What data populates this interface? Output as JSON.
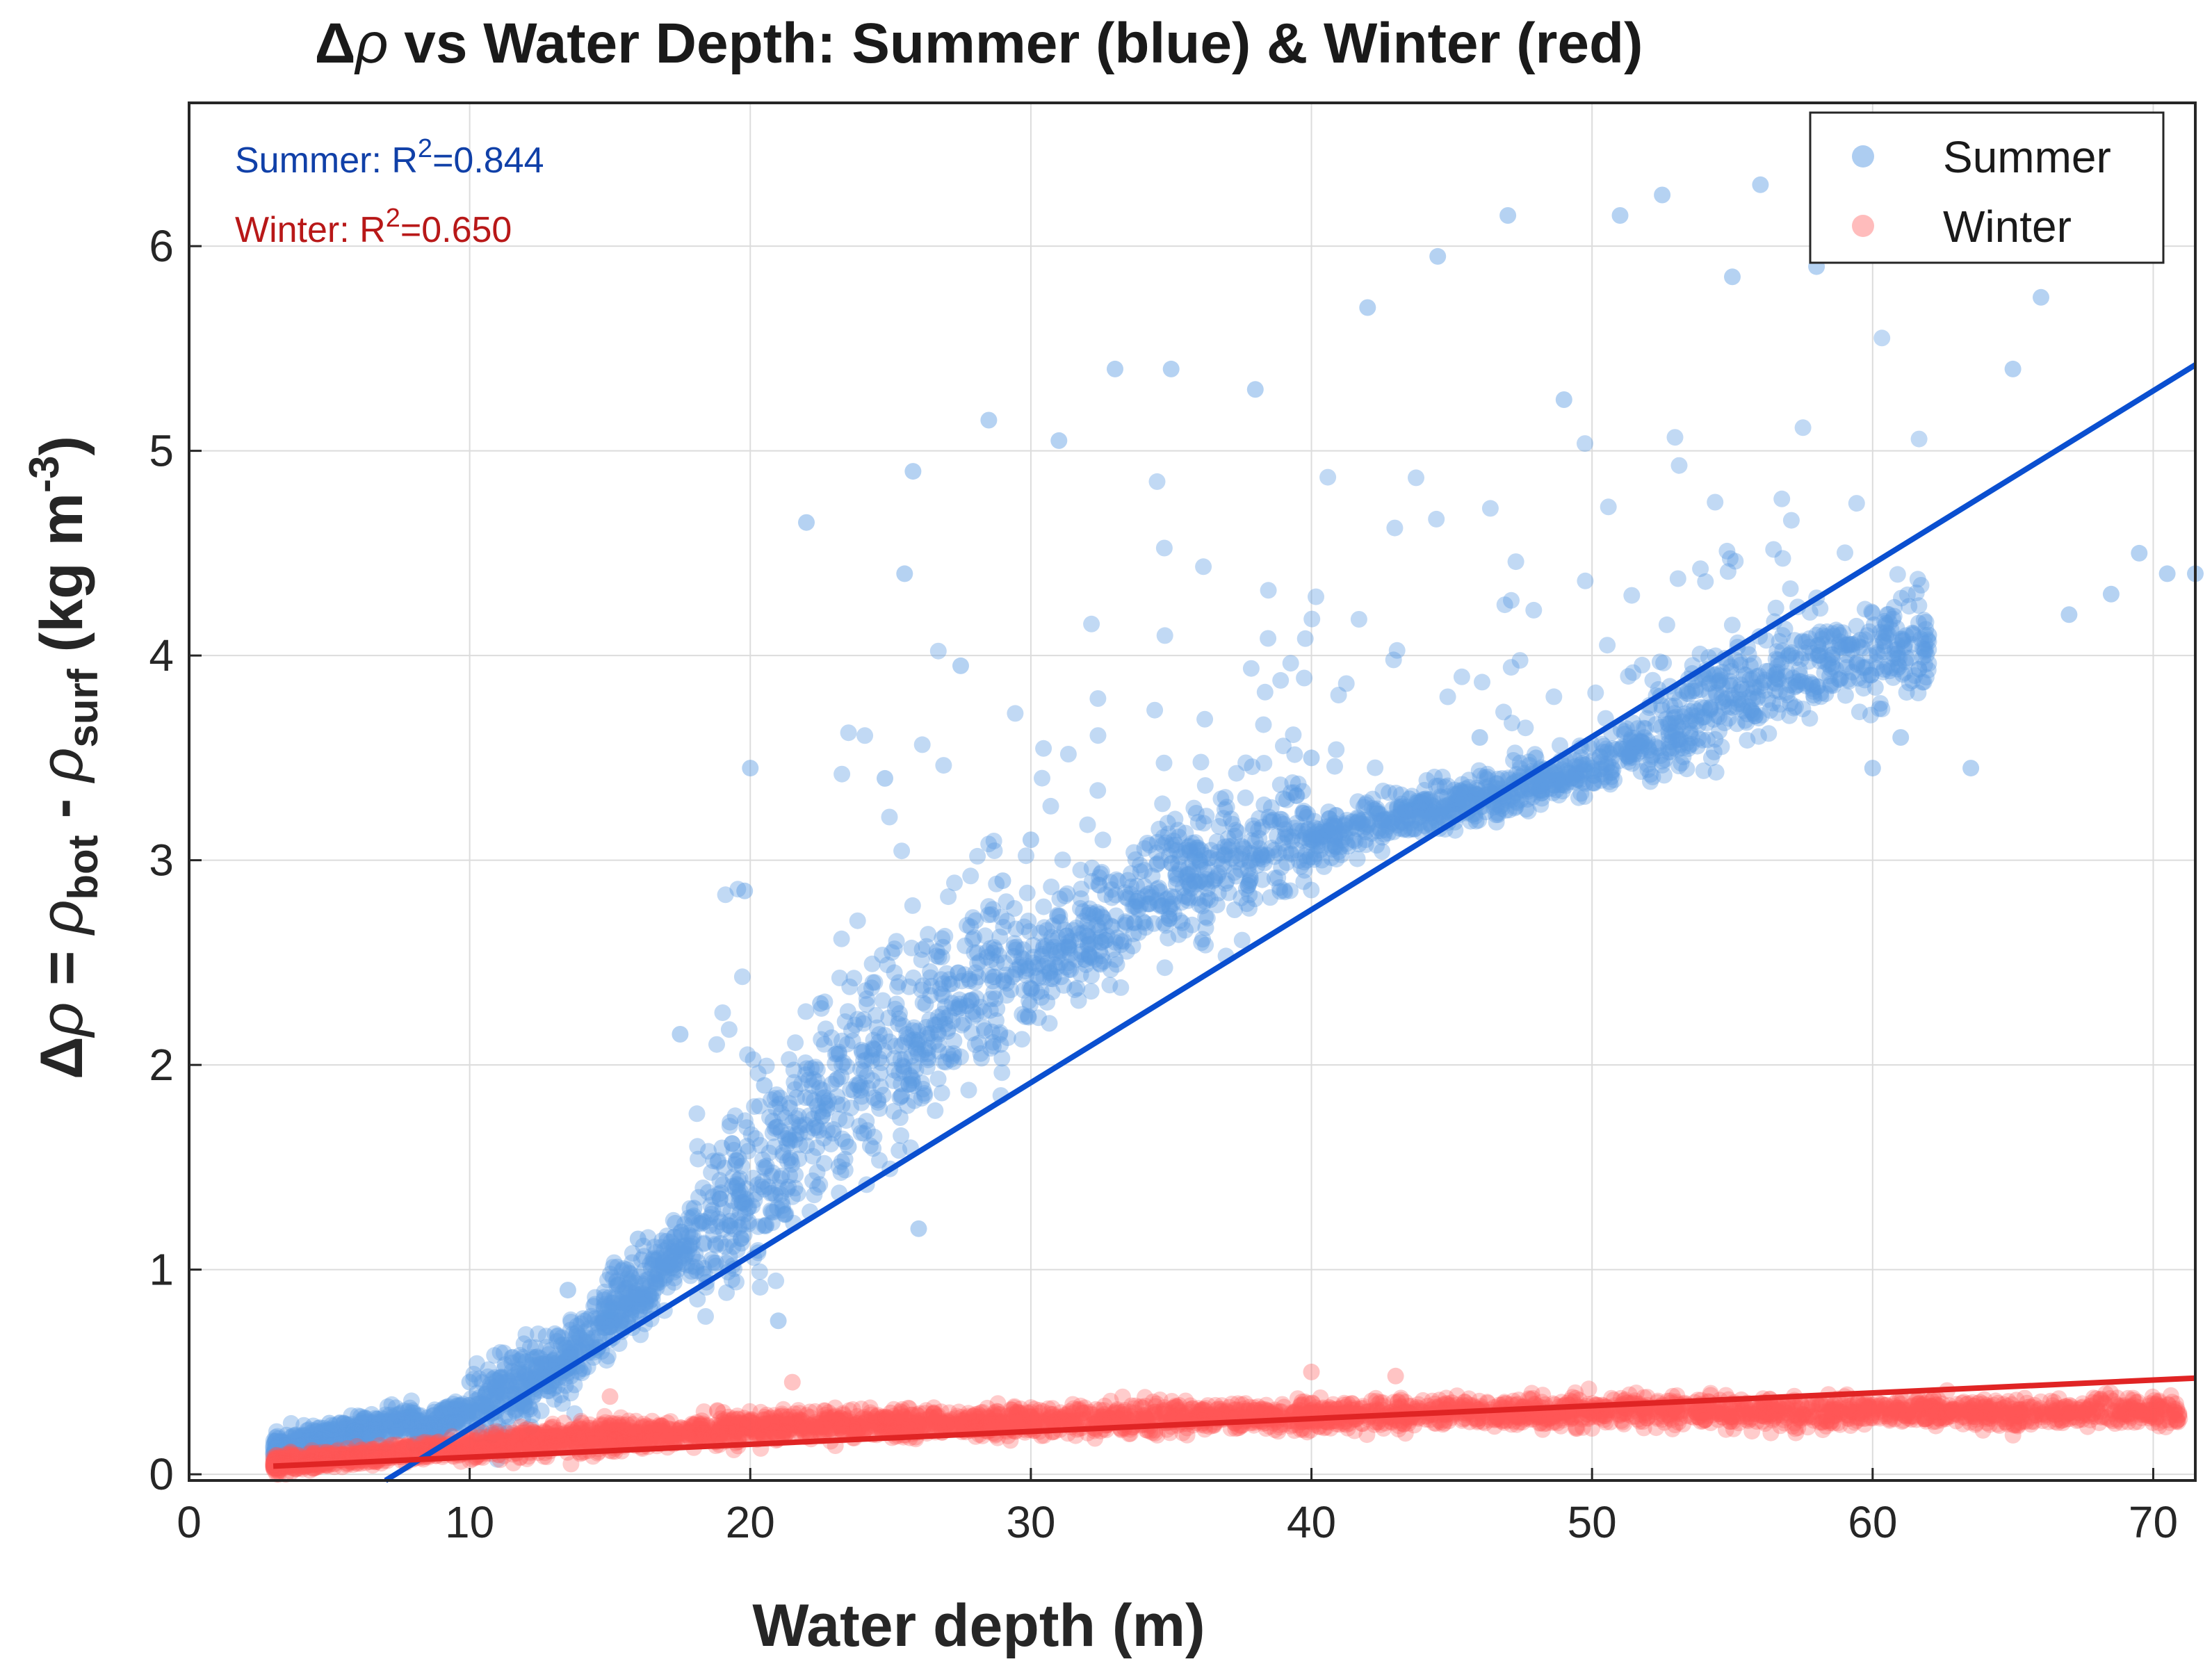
{
  "chart_data": {
    "type": "scatter",
    "title_prefix": "Δ",
    "title_rho": "ρ",
    "title_rest": " vs Water Depth: Summer (blue) & Winter (red)",
    "xlabel": "Water depth (m)",
    "ylabel": {
      "delta": "Δ",
      "rho1": "ρ",
      "eq": " = ",
      "rho2": "ρ",
      "sub1": "bot",
      "minus": " - ",
      "rho3": "ρ",
      "sub2": "surf",
      "units_open": " (kg m",
      "units_sup": "-3",
      "units_close": ")"
    },
    "xlim": [
      0,
      71.5
    ],
    "ylim": [
      -0.03,
      6.7
    ],
    "xticks": [
      0,
      10,
      20,
      30,
      40,
      50,
      60,
      70
    ],
    "yticks": [
      0,
      1,
      2,
      3,
      4,
      5,
      6
    ],
    "grid": true,
    "legend_position": "top-right",
    "colors": {
      "summer_points": "#5b9be3",
      "summer_line": "#0a4fd0",
      "summer_text": "#1040a8",
      "winter_points": "#ff5757",
      "winter_line": "#e02424",
      "winter_text": "#b81818",
      "grid": "#dcdcdc",
      "axes": "#262626"
    },
    "annotations": {
      "summer_prefix": "Summer: R",
      "summer_sup": "2",
      "summer_value": "=0.844",
      "winter_prefix": "Winter: R",
      "winter_sup": "2",
      "winter_value": "=0.650"
    },
    "series": [
      {
        "name": "Summer",
        "kind": "points",
        "point_count": 3500,
        "fit_line": {
          "x": [
            7.0,
            71.5
          ],
          "y": [
            -0.03,
            5.42
          ]
        },
        "r_squared": 0.844,
        "sample_points": [
          [
            3.5,
            0.12
          ],
          [
            5,
            0.25
          ],
          [
            8,
            0.3
          ],
          [
            10,
            0.45
          ],
          [
            12,
            0.55
          ],
          [
            13.5,
            0.9
          ],
          [
            15,
            0.8
          ],
          [
            16,
            1.15
          ],
          [
            17.5,
            2.15
          ],
          [
            18,
            1.3
          ],
          [
            19.8,
            2.85
          ],
          [
            20,
            3.45
          ],
          [
            20.5,
            1.9
          ],
          [
            21,
            0.75
          ],
          [
            22,
            4.65
          ],
          [
            22.5,
            2.3
          ],
          [
            23.5,
            1.6
          ],
          [
            24.8,
            3.4
          ],
          [
            25.5,
            4.4
          ],
          [
            25.8,
            4.9
          ],
          [
            26,
            1.2
          ],
          [
            27.5,
            3.95
          ],
          [
            28.5,
            5.15
          ],
          [
            29,
            2.9
          ],
          [
            30,
            3.1
          ],
          [
            31,
            5.05
          ],
          [
            33,
            5.4
          ],
          [
            34,
            2.7
          ],
          [
            35,
            5.4
          ],
          [
            36,
            3.0
          ],
          [
            38,
            5.3
          ],
          [
            39,
            3.3
          ],
          [
            40,
            3.5
          ],
          [
            42,
            5.7
          ],
          [
            43.5,
            3.3
          ],
          [
            44.5,
            5.95
          ],
          [
            46,
            3.6
          ],
          [
            47,
            6.15
          ],
          [
            48,
            3.5
          ],
          [
            49,
            5.25
          ],
          [
            50,
            3.45
          ],
          [
            51,
            6.15
          ],
          [
            52,
            3.55
          ],
          [
            52.5,
            6.25
          ],
          [
            54,
            3.7
          ],
          [
            55,
            5.85
          ],
          [
            56,
            6.3
          ],
          [
            57,
            4.0
          ],
          [
            58,
            5.9
          ],
          [
            60,
            3.45
          ],
          [
            61,
            3.6
          ],
          [
            62,
            4.1
          ],
          [
            63.5,
            3.45
          ],
          [
            65,
            5.4
          ],
          [
            66,
            5.75
          ],
          [
            67,
            4.2
          ],
          [
            68.5,
            4.3
          ],
          [
            69.5,
            4.5
          ],
          [
            70.5,
            4.4
          ],
          [
            71.5,
            4.4
          ]
        ]
      },
      {
        "name": "Winter",
        "kind": "points",
        "point_count": 4000,
        "fit_line": {
          "x": [
            3.0,
            71.5
          ],
          "y": [
            0.04,
            0.47
          ]
        },
        "r_squared": 0.65,
        "sample_points": [
          [
            3.5,
            0.05
          ],
          [
            6,
            0.08
          ],
          [
            10,
            0.12
          ],
          [
            14,
            0.25
          ],
          [
            15,
            0.38
          ],
          [
            18,
            0.2
          ],
          [
            21.5,
            0.45
          ],
          [
            25,
            0.3
          ],
          [
            30,
            0.28
          ],
          [
            35,
            0.3
          ],
          [
            40,
            0.5
          ],
          [
            43,
            0.48
          ],
          [
            45,
            0.35
          ],
          [
            50,
            0.3
          ],
          [
            55,
            0.28
          ],
          [
            60,
            0.3
          ],
          [
            65,
            0.32
          ],
          [
            68,
            0.35
          ],
          [
            70.5,
            0.3
          ]
        ]
      }
    ],
    "legend": [
      "Summer",
      "Winter"
    ]
  }
}
